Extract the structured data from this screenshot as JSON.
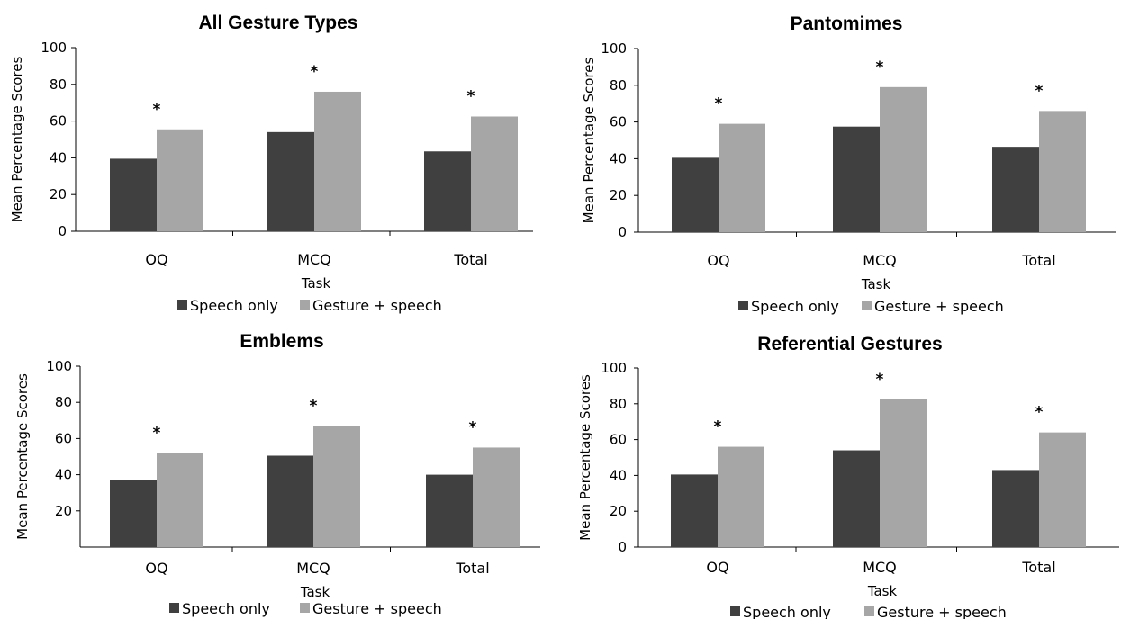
{
  "chart_data": [
    {
      "type": "bar",
      "title": "All Gesture Types",
      "xlabel": "Task",
      "ylabel": "Mean Percentage Scores",
      "categories": [
        "OQ",
        "MCQ",
        "Total"
      ],
      "yticks": [
        0,
        20,
        40,
        60,
        80,
        100
      ],
      "ylim": [
        0,
        100
      ],
      "series": [
        {
          "name": "Speech only",
          "values": [
            39.5,
            54,
            43.5
          ]
        },
        {
          "name": "Gesture + speech",
          "values": [
            55.5,
            76,
            62.5
          ]
        }
      ],
      "annotations": [
        "*",
        "*",
        "*"
      ],
      "legend": "bottom",
      "colors": [
        "#404040",
        "#a6a6a6"
      ]
    },
    {
      "type": "bar",
      "title": "Pantomimes",
      "xlabel": "Task",
      "ylabel": "Mean Percentage Scores",
      "categories": [
        "OQ",
        "MCQ",
        "Total"
      ],
      "yticks": [
        0,
        20,
        40,
        60,
        80,
        100
      ],
      "ylim": [
        0,
        100
      ],
      "series": [
        {
          "name": "Speech only",
          "values": [
            40.5,
            57.5,
            46.5
          ]
        },
        {
          "name": "Gesture + speech",
          "values": [
            59,
            79,
            66
          ]
        }
      ],
      "annotations": [
        "*",
        "*",
        "*"
      ],
      "legend": "bottom",
      "colors": [
        "#404040",
        "#a6a6a6"
      ]
    },
    {
      "type": "bar",
      "title": "Emblems",
      "xlabel": "Task",
      "ylabel": "Mean Percentage Scores",
      "categories": [
        "OQ",
        "MCQ",
        "Total"
      ],
      "yticks": [
        20,
        40,
        60,
        80,
        100
      ],
      "ylim": [
        0,
        100
      ],
      "series": [
        {
          "name": "Speech only",
          "values": [
            37,
            50.5,
            40
          ]
        },
        {
          "name": "Gesture + speech",
          "values": [
            52,
            67,
            55
          ]
        }
      ],
      "annotations": [
        "*",
        "*",
        "*"
      ],
      "legend": "bottom",
      "colors": [
        "#404040",
        "#a6a6a6"
      ]
    },
    {
      "type": "bar",
      "title": "Referential Gestures",
      "xlabel": "Task",
      "ylabel": "Mean Percentage Scores",
      "categories": [
        "OQ",
        "MCQ",
        "Total"
      ],
      "yticks": [
        0,
        20,
        40,
        60,
        80,
        100
      ],
      "ylim": [
        0,
        100
      ],
      "series": [
        {
          "name": "Speech only",
          "values": [
            40.5,
            54,
            43
          ]
        },
        {
          "name": "Gesture + speech",
          "values": [
            56,
            82.5,
            64
          ]
        }
      ],
      "annotations": [
        "*",
        "*",
        "*"
      ],
      "legend": "bottom",
      "colors": [
        "#404040",
        "#a6a6a6"
      ]
    }
  ]
}
